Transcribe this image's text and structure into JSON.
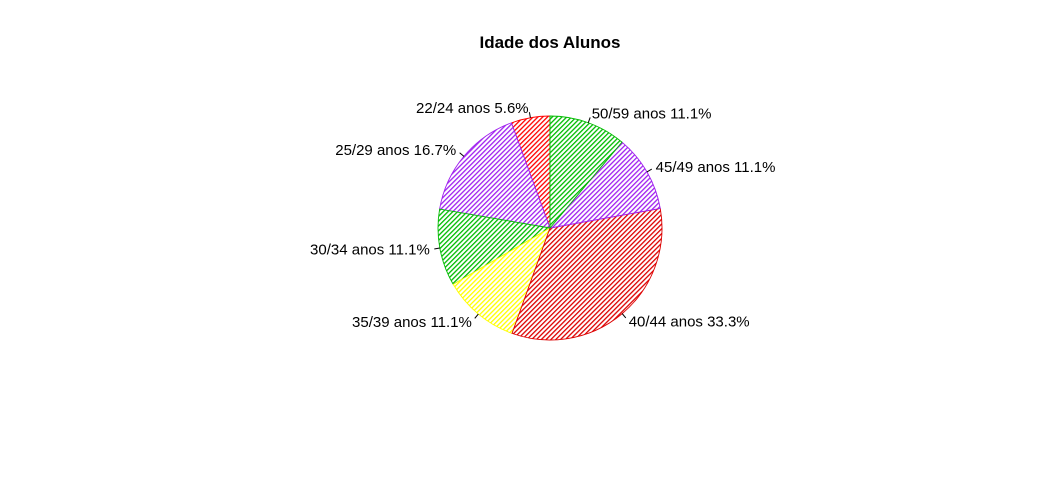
{
  "chart_data": {
    "type": "pie",
    "title": "Idade dos Alunos",
    "direction": "counterclockwise",
    "start": "top",
    "fill": "diagonal hatch",
    "slices": [
      {
        "label": "22/24 anos 5.6%",
        "value": 5.6,
        "color": "#ff0000"
      },
      {
        "label": "25/29 anos 16.7%",
        "value": 16.7,
        "color": "#a020f0"
      },
      {
        "label": "30/34 anos 11.1%",
        "value": 11.1,
        "color": "#00bb00"
      },
      {
        "label": "35/39 anos 11.1%",
        "value": 11.1,
        "color": "#ffff00"
      },
      {
        "label": "40/44 anos 33.3%",
        "value": 33.3,
        "color": "#dd0000"
      },
      {
        "label": "45/49 anos 11.1%",
        "value": 11.1,
        "color": "#a020f0"
      },
      {
        "label": "50/59 anos 11.1%",
        "value": 11.1,
        "color": "#00bb00"
      }
    ]
  }
}
